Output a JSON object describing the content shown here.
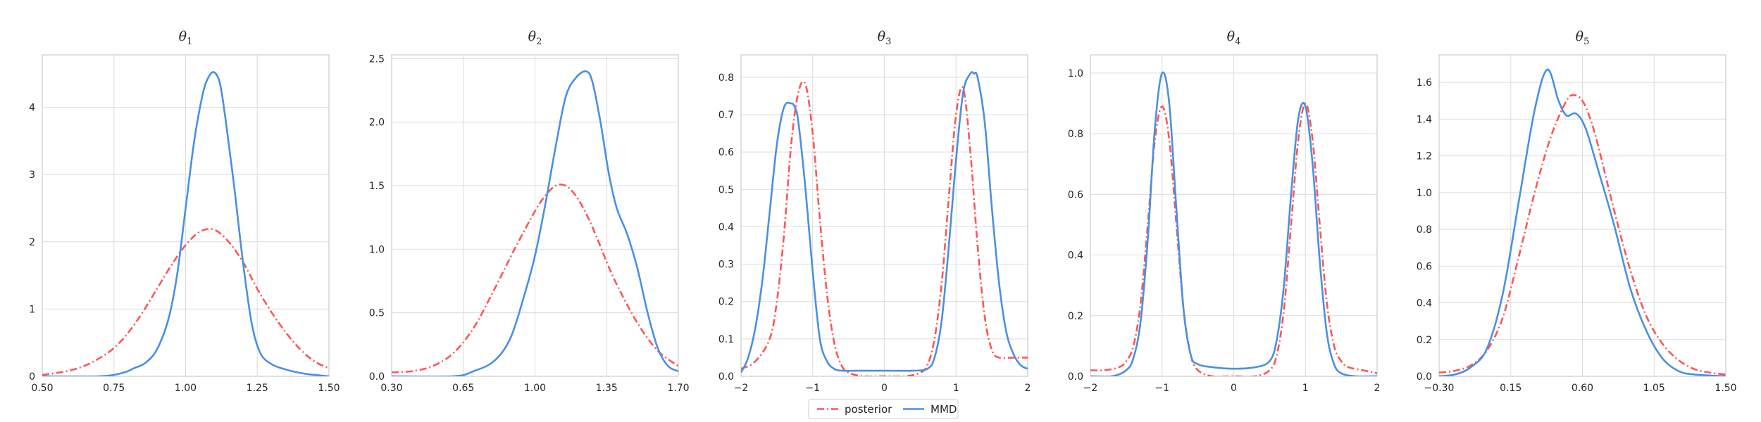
{
  "chart_data": [
    {
      "type": "line",
      "title": "θ",
      "title_sub": "1",
      "xlim": [
        0.5,
        1.5
      ],
      "ylim": [
        0,
        4.78
      ],
      "xticks": [
        0.5,
        0.75,
        1.0,
        1.25,
        1.5
      ],
      "xtick_labels": [
        "0.50",
        "0.75",
        "1.00",
        "1.25",
        "1.50"
      ],
      "yticks": [
        0,
        1,
        2,
        3,
        4
      ],
      "ytick_labels": [
        "0",
        "1",
        "2",
        "3",
        "4"
      ],
      "series": [
        {
          "name": "posterior",
          "color": "#ff5555",
          "style": "dashdot",
          "x": [
            0.5,
            0.55,
            0.6,
            0.65,
            0.7,
            0.75,
            0.8,
            0.85,
            0.9,
            0.95,
            1.0,
            1.05,
            1.1,
            1.15,
            1.2,
            1.25,
            1.3,
            1.35,
            1.4,
            1.45,
            1.5
          ],
          "y": [
            0.02,
            0.05,
            0.09,
            0.16,
            0.27,
            0.42,
            0.65,
            0.95,
            1.3,
            1.65,
            1.95,
            2.15,
            2.18,
            2.0,
            1.7,
            1.3,
            0.95,
            0.65,
            0.4,
            0.22,
            0.12
          ]
        },
        {
          "name": "MMD",
          "color": "#4a90e2",
          "style": "solid",
          "x": [
            0.5,
            0.7,
            0.78,
            0.82,
            0.86,
            0.9,
            0.94,
            0.97,
            1.0,
            1.03,
            1.06,
            1.08,
            1.1,
            1.12,
            1.14,
            1.17,
            1.2,
            1.23,
            1.26,
            1.3,
            1.35,
            1.4,
            1.45,
            1.5
          ],
          "y": [
            0.0,
            0.0,
            0.05,
            0.12,
            0.2,
            0.4,
            0.85,
            1.5,
            2.5,
            3.5,
            4.2,
            4.45,
            4.52,
            4.35,
            3.8,
            2.8,
            1.7,
            0.8,
            0.35,
            0.18,
            0.1,
            0.05,
            0.02,
            0.0
          ]
        }
      ]
    },
    {
      "type": "line",
      "title": "θ",
      "title_sub": "2",
      "xlim": [
        0.3,
        1.7
      ],
      "ylim": [
        0,
        2.53
      ],
      "xticks": [
        0.3,
        0.65,
        1.0,
        1.35,
        1.7
      ],
      "xtick_labels": [
        "0.30",
        "0.65",
        "1.00",
        "1.35",
        "1.70"
      ],
      "yticks": [
        0,
        0.5,
        1.0,
        1.5,
        2.0,
        2.5
      ],
      "ytick_labels": [
        "0.0",
        "0.5",
        "1.0",
        "1.5",
        "2.0",
        "2.5"
      ],
      "series": [
        {
          "name": "posterior",
          "color": "#ff5555",
          "style": "dashdot",
          "x": [
            0.3,
            0.4,
            0.5,
            0.6,
            0.7,
            0.8,
            0.9,
            1.0,
            1.05,
            1.1,
            1.15,
            1.2,
            1.25,
            1.3,
            1.35,
            1.4,
            1.5,
            1.6,
            1.7
          ],
          "y": [
            0.03,
            0.04,
            0.08,
            0.18,
            0.38,
            0.68,
            1.0,
            1.3,
            1.42,
            1.5,
            1.5,
            1.42,
            1.28,
            1.1,
            0.9,
            0.72,
            0.42,
            0.2,
            0.08
          ]
        },
        {
          "name": "MMD",
          "color": "#4a90e2",
          "style": "solid",
          "x": [
            0.3,
            0.6,
            0.7,
            0.8,
            0.88,
            0.95,
            1.0,
            1.05,
            1.1,
            1.15,
            1.2,
            1.25,
            1.28,
            1.32,
            1.36,
            1.4,
            1.45,
            1.5,
            1.55,
            1.6,
            1.65,
            1.7
          ],
          "y": [
            0.0,
            0.0,
            0.04,
            0.12,
            0.3,
            0.65,
            0.95,
            1.35,
            1.8,
            2.2,
            2.35,
            2.4,
            2.32,
            2.0,
            1.6,
            1.32,
            1.12,
            0.85,
            0.5,
            0.22,
            0.08,
            0.04
          ]
        }
      ]
    },
    {
      "type": "line",
      "title": "θ",
      "title_sub": "3",
      "xlim": [
        -2,
        2
      ],
      "ylim": [
        0,
        0.86
      ],
      "xticks": [
        -2,
        -1,
        0,
        1,
        2
      ],
      "xtick_labels": [
        "−2",
        "−1",
        "0",
        "1",
        "2"
      ],
      "yticks": [
        0,
        0.1,
        0.2,
        0.3,
        0.4,
        0.5,
        0.6,
        0.7,
        0.8
      ],
      "ytick_labels": [
        "0.0",
        "0.1",
        "0.2",
        "0.3",
        "0.4",
        "0.5",
        "0.6",
        "0.7",
        "0.8"
      ],
      "series": [
        {
          "name": "posterior",
          "color": "#ff5555",
          "style": "dashdot",
          "x": [
            -2,
            -1.8,
            -1.6,
            -1.5,
            -1.4,
            -1.3,
            -1.2,
            -1.1,
            -1.0,
            -0.9,
            -0.8,
            -0.7,
            -0.6,
            -0.5,
            -0.3,
            0,
            0.3,
            0.5,
            0.6,
            0.7,
            0.8,
            0.9,
            1.0,
            1.1,
            1.2,
            1.3,
            1.4,
            1.5,
            1.6,
            1.8,
            2.0
          ],
          "y": [
            0.02,
            0.04,
            0.1,
            0.2,
            0.38,
            0.62,
            0.76,
            0.78,
            0.65,
            0.42,
            0.22,
            0.09,
            0.03,
            0.01,
            0.0,
            0.0,
            0.0,
            0.01,
            0.03,
            0.1,
            0.25,
            0.48,
            0.7,
            0.77,
            0.6,
            0.35,
            0.16,
            0.07,
            0.05,
            0.05,
            0.05
          ]
        },
        {
          "name": "MMD",
          "color": "#4a90e2",
          "style": "solid",
          "x": [
            -2,
            -1.9,
            -1.8,
            -1.7,
            -1.6,
            -1.5,
            -1.4,
            -1.3,
            -1.25,
            -1.2,
            -1.1,
            -1.0,
            -0.9,
            -0.8,
            -0.7,
            -0.6,
            -0.4,
            0,
            0.4,
            0.6,
            0.7,
            0.8,
            0.9,
            1.0,
            1.1,
            1.2,
            1.25,
            1.3,
            1.4,
            1.5,
            1.6,
            1.7,
            1.8,
            1.9,
            2.0
          ],
          "y": [
            0.01,
            0.05,
            0.13,
            0.26,
            0.44,
            0.62,
            0.72,
            0.73,
            0.72,
            0.68,
            0.5,
            0.28,
            0.1,
            0.04,
            0.02,
            0.015,
            0.015,
            0.015,
            0.015,
            0.02,
            0.05,
            0.15,
            0.35,
            0.58,
            0.76,
            0.81,
            0.81,
            0.8,
            0.68,
            0.45,
            0.25,
            0.12,
            0.06,
            0.03,
            0.02
          ]
        }
      ]
    },
    {
      "type": "line",
      "title": "θ",
      "title_sub": "4",
      "xlim": [
        -2,
        2
      ],
      "ylim": [
        0,
        1.06
      ],
      "xticks": [
        -2,
        -1,
        0,
        1,
        2
      ],
      "xtick_labels": [
        "−2",
        "−1",
        "0",
        "1",
        "2"
      ],
      "yticks": [
        0,
        0.2,
        0.4,
        0.6,
        0.8,
        1.0
      ],
      "ytick_labels": [
        "0.0",
        "0.2",
        "0.4",
        "0.6",
        "0.8",
        "1.0"
      ],
      "series": [
        {
          "name": "posterior",
          "color": "#ff5555",
          "style": "dashdot",
          "x": [
            -2,
            -1.8,
            -1.6,
            -1.5,
            -1.4,
            -1.3,
            -1.2,
            -1.1,
            -1.0,
            -0.9,
            -0.8,
            -0.7,
            -0.6,
            -0.5,
            -0.3,
            0,
            0.3,
            0.5,
            0.6,
            0.7,
            0.8,
            0.9,
            1.0,
            1.1,
            1.2,
            1.3,
            1.4,
            1.5,
            1.6,
            1.8,
            2.0
          ],
          "y": [
            0.02,
            0.02,
            0.03,
            0.05,
            0.1,
            0.24,
            0.5,
            0.78,
            0.89,
            0.78,
            0.5,
            0.22,
            0.07,
            0.02,
            0.0,
            0.0,
            0.0,
            0.02,
            0.07,
            0.22,
            0.5,
            0.78,
            0.9,
            0.78,
            0.5,
            0.24,
            0.1,
            0.05,
            0.03,
            0.02,
            0.01
          ]
        },
        {
          "name": "MMD",
          "color": "#4a90e2",
          "style": "solid",
          "x": [
            -2,
            -1.7,
            -1.5,
            -1.4,
            -1.3,
            -1.2,
            -1.1,
            -1.0,
            -0.9,
            -0.8,
            -0.7,
            -0.6,
            -0.5,
            -0.3,
            0,
            0.3,
            0.5,
            0.6,
            0.7,
            0.8,
            0.9,
            1.0,
            1.1,
            1.2,
            1.3,
            1.4,
            1.5,
            1.7,
            2.0
          ],
          "y": [
            0.0,
            0.0,
            0.02,
            0.06,
            0.18,
            0.45,
            0.82,
            1.0,
            0.9,
            0.55,
            0.22,
            0.07,
            0.04,
            0.03,
            0.025,
            0.03,
            0.05,
            0.12,
            0.3,
            0.6,
            0.85,
            0.89,
            0.7,
            0.38,
            0.14,
            0.04,
            0.01,
            0.0,
            0.0
          ]
        }
      ]
    },
    {
      "type": "line",
      "title": "θ",
      "title_sub": "5",
      "xlim": [
        -0.3,
        1.5
      ],
      "ylim": [
        0,
        1.75
      ],
      "xticks": [
        -0.3,
        0.15,
        0.6,
        1.05,
        1.5
      ],
      "xtick_labels": [
        "−0.30",
        "0.15",
        "0.60",
        "1.05",
        "1.50"
      ],
      "yticks": [
        0,
        0.2,
        0.4,
        0.6,
        0.8,
        1.0,
        1.2,
        1.4,
        1.6
      ],
      "ytick_labels": [
        "0.0",
        "0.2",
        "0.4",
        "0.6",
        "0.8",
        "1.0",
        "1.2",
        "1.4",
        "1.6"
      ],
      "series": [
        {
          "name": "posterior",
          "color": "#ff5555",
          "style": "dashdot",
          "x": [
            -0.3,
            -0.2,
            -0.1,
            0.0,
            0.1,
            0.2,
            0.3,
            0.4,
            0.5,
            0.55,
            0.6,
            0.65,
            0.7,
            0.8,
            0.9,
            1.0,
            1.1,
            1.2,
            1.3,
            1.4,
            1.5
          ],
          "y": [
            0.02,
            0.03,
            0.06,
            0.14,
            0.32,
            0.65,
            1.0,
            1.3,
            1.5,
            1.53,
            1.5,
            1.4,
            1.25,
            0.9,
            0.58,
            0.33,
            0.18,
            0.09,
            0.04,
            0.02,
            0.01
          ]
        },
        {
          "name": "MMD",
          "color": "#4a90e2",
          "style": "solid",
          "x": [
            -0.3,
            -0.2,
            -0.1,
            0.0,
            0.1,
            0.2,
            0.3,
            0.38,
            0.45,
            0.5,
            0.56,
            0.62,
            0.7,
            0.8,
            0.9,
            1.0,
            1.1,
            1.2,
            1.3,
            1.5
          ],
          "y": [
            0.0,
            0.01,
            0.05,
            0.15,
            0.45,
            0.95,
            1.45,
            1.67,
            1.5,
            1.42,
            1.43,
            1.35,
            1.12,
            0.82,
            0.48,
            0.25,
            0.1,
            0.03,
            0.01,
            0.0
          ]
        }
      ]
    }
  ],
  "legend": {
    "placement": "bottom-center",
    "entries": [
      {
        "label": "posterior",
        "color": "#ff5555",
        "style": "dashdot"
      },
      {
        "label": "MMD",
        "color": "#4a90e2",
        "style": "solid"
      }
    ]
  },
  "colors": {
    "grid": "#dcdcdc",
    "spine": "#cccccc",
    "text": "#262626"
  }
}
